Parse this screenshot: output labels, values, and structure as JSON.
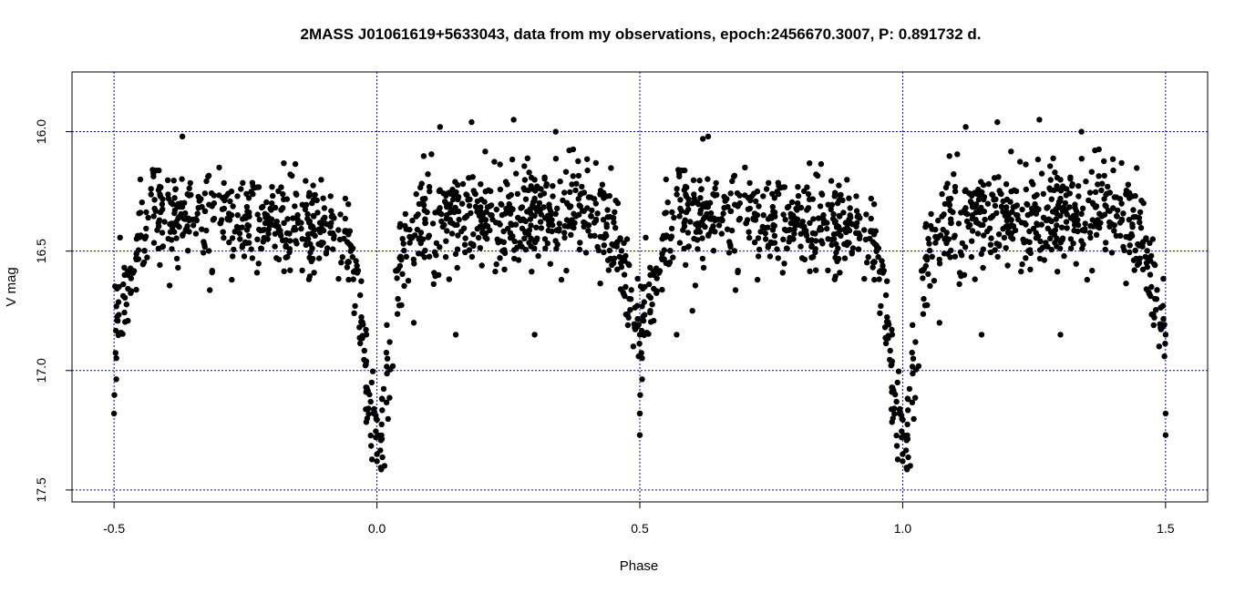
{
  "chart_data": {
    "type": "scatter",
    "title": "2MASS J01061619+5633043, data from my observations, epoch:2456670.3007, P: 0.891732 d.",
    "xlabel": "Phase",
    "ylabel": "V mag",
    "xlim": [
      -0.58,
      1.58
    ],
    "ylim": [
      17.55,
      15.75
    ],
    "y_inverted": true,
    "x_ticks": [
      "-0.5",
      "0.0",
      "0.5",
      "1.0",
      "1.5"
    ],
    "y_ticks": [
      "16.0",
      "16.5",
      "17.0",
      "17.5"
    ],
    "grid": true,
    "grid_color": "#0000cc",
    "point_color": "#000000",
    "phase_period_repeat": 1.0,
    "light_curve_model": {
      "primary_minimum": {
        "phase": 0.0,
        "depth_mag": 17.3,
        "width": 0.035
      },
      "secondary_minimum": {
        "phase": 0.5,
        "depth_mag": 16.9,
        "width": 0.04
      },
      "maximum_1": {
        "phase": 0.25,
        "mag": 16.33
      },
      "maximum_2": {
        "phase": 0.75,
        "mag": 16.35
      },
      "baseline_mag": 16.5
    },
    "sample_points": [
      {
        "x": 0.0,
        "y": 17.38
      },
      {
        "x": 0.0,
        "y": 17.35
      },
      {
        "x": -0.002,
        "y": 17.28
      },
      {
        "x": 0.01,
        "y": 17.12
      },
      {
        "x": -0.01,
        "y": 17.05
      },
      {
        "x": 0.02,
        "y": 16.95
      },
      {
        "x": -0.02,
        "y": 16.85
      },
      {
        "x": 0.04,
        "y": 16.7
      },
      {
        "x": -0.05,
        "y": 16.5
      },
      {
        "x": 0.08,
        "y": 16.45
      },
      {
        "x": 0.1,
        "y": 16.25
      },
      {
        "x": 0.12,
        "y": 15.98
      },
      {
        "x": 0.18,
        "y": 15.96
      },
      {
        "x": 0.26,
        "y": 15.95
      },
      {
        "x": 0.34,
        "y": 16.0
      },
      {
        "x": 0.3,
        "y": 16.28
      },
      {
        "x": 0.4,
        "y": 16.32
      },
      {
        "x": 0.45,
        "y": 16.55
      },
      {
        "x": 0.48,
        "y": 16.7
      },
      {
        "x": 0.5,
        "y": 16.85
      },
      {
        "x": 0.5,
        "y": 17.27
      },
      {
        "x": 0.5,
        "y": 17.18
      },
      {
        "x": 0.52,
        "y": 16.75
      },
      {
        "x": 0.55,
        "y": 16.55
      },
      {
        "x": 0.6,
        "y": 16.3
      },
      {
        "x": 0.62,
        "y": 16.03
      },
      {
        "x": 0.7,
        "y": 16.15
      },
      {
        "x": 0.8,
        "y": 16.3
      },
      {
        "x": 0.9,
        "y": 16.35
      },
      {
        "x": 0.95,
        "y": 16.5
      },
      {
        "x": -0.5,
        "y": 17.18
      },
      {
        "x": -0.48,
        "y": 16.6
      },
      {
        "x": -0.45,
        "y": 16.2
      },
      {
        "x": -0.37,
        "y": 16.02
      },
      {
        "x": -0.3,
        "y": 16.15
      },
      {
        "x": -0.2,
        "y": 16.3
      },
      {
        "x": -0.1,
        "y": 16.32
      },
      {
        "x": 0.15,
        "y": 16.85
      },
      {
        "x": 0.3,
        "y": 16.85
      },
      {
        "x": 0.07,
        "y": 16.8
      },
      {
        "x": 0.6,
        "y": 16.75
      },
      {
        "x": 0.57,
        "y": 16.85
      }
    ]
  }
}
